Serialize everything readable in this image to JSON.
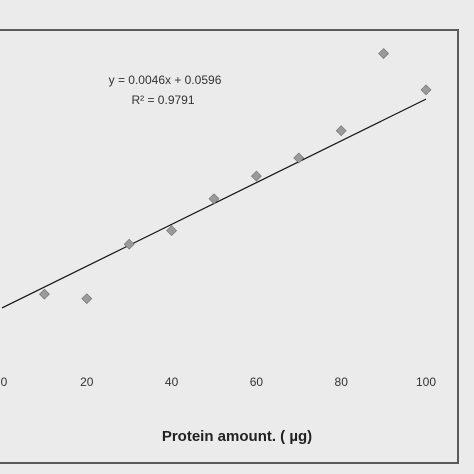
{
  "chart_data": {
    "type": "scatter",
    "title": "",
    "xlabel": "Protein amount. ( µg)",
    "ylabel": "",
    "xlim": [
      0,
      100
    ],
    "x_ticks": [
      "0",
      "20",
      "40",
      "60",
      "80",
      "100"
    ],
    "series": [
      {
        "x": [
          10,
          20,
          30,
          40,
          50,
          60,
          70,
          80,
          90,
          100
        ],
        "y": [
          0.09,
          0.08,
          0.2,
          0.23,
          0.3,
          0.35,
          0.39,
          0.45,
          0.62,
          0.54
        ]
      }
    ],
    "trendline": {
      "slope": 0.0046,
      "intercept": 0.0596,
      "equation": "y = 0.0046x + 0.0596",
      "r_squared": "R² = 0.9791"
    },
    "grid": false,
    "colors": {
      "marker": "#9a9a9a",
      "marker_stroke": "#6f6f6f",
      "line": "#111111"
    }
  }
}
